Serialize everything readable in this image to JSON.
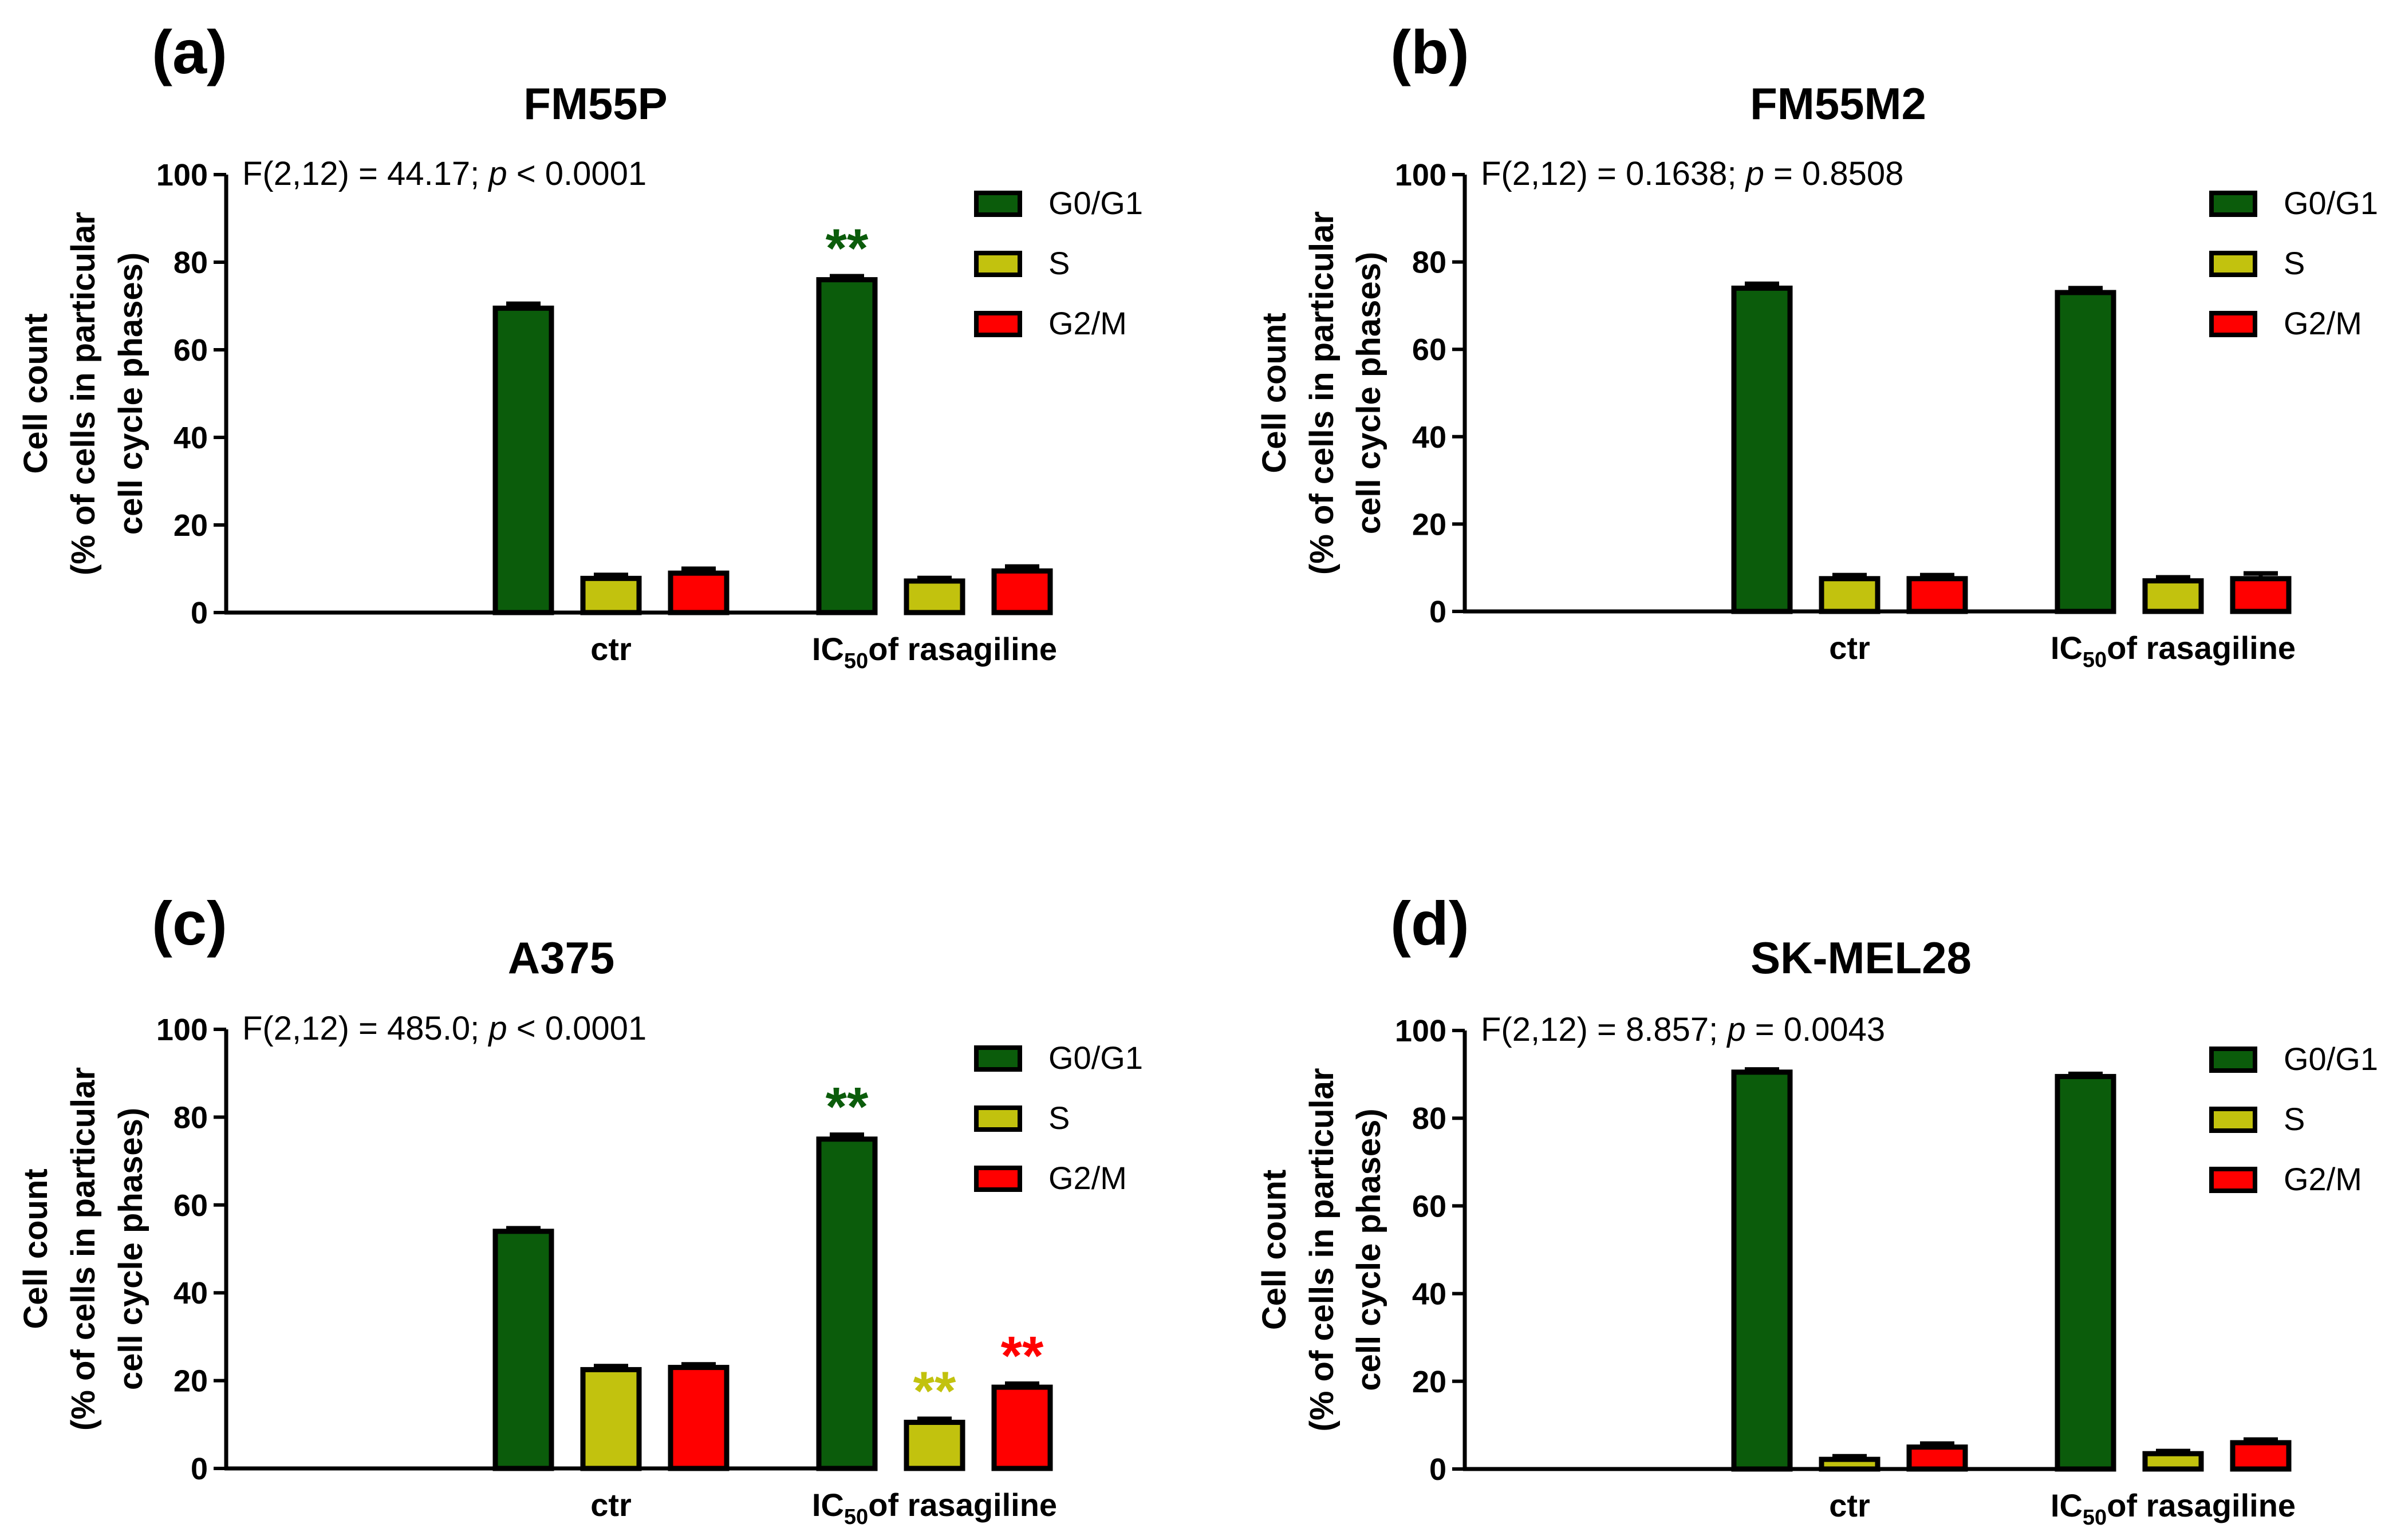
{
  "colors": {
    "G0/G1": "#0b5c0b",
    "S": "#c2c20e",
    "G2/M": "#ff0000",
    "stroke": "#000000"
  },
  "chart_data": [
    {
      "type": "bar",
      "panel_label": "(a)",
      "title": "FM55P",
      "annotation": {
        "prefix": "F(2,12) = 44.17; ",
        "p_symbol": "p",
        "suffix": " < 0.0001"
      },
      "ylabel_line1": "Cell count",
      "ylabel_line2": "(% of cells in particular",
      "ylabel_line3": "cell cycle phases)",
      "ylim": [
        0,
        100
      ],
      "yticks": [
        "0",
        "20",
        "40",
        "60",
        "80",
        "100"
      ],
      "categories": [
        {
          "main": "ctr",
          "sub": "",
          "rest": ""
        },
        {
          "main": "IC",
          "sub": "50",
          "rest": "of rasagiline"
        }
      ],
      "legend": [
        "G0/G1",
        "S",
        "G2/M"
      ],
      "legend_position": "right",
      "series": [
        {
          "name": "G0/G1",
          "values": [
            69.5,
            76.0
          ],
          "errors": [
            1.0,
            0.8
          ],
          "stars": [
            "",
            "**"
          ]
        },
        {
          "name": "S",
          "values": [
            7.8,
            7.2
          ],
          "errors": [
            0.8,
            0.7
          ],
          "stars": [
            "",
            ""
          ]
        },
        {
          "name": "G2/M",
          "values": [
            9.0,
            9.5
          ],
          "errors": [
            1.0,
            1.0
          ],
          "stars": [
            "",
            ""
          ]
        }
      ]
    },
    {
      "type": "bar",
      "panel_label": "(b)",
      "title": "FM55M2",
      "annotation": {
        "prefix": "F(2,12) = 0.1638; ",
        "p_symbol": "p",
        "suffix": " = 0.8508"
      },
      "ylabel_line1": "Cell count",
      "ylabel_line2": "(% of cells in particular",
      "ylabel_line3": "cell cycle phases)",
      "ylim": [
        0,
        100
      ],
      "yticks": [
        "0",
        "20",
        "40",
        "60",
        "80",
        "100"
      ],
      "categories": [
        {
          "main": "ctr",
          "sub": "",
          "rest": ""
        },
        {
          "main": "IC",
          "sub": "50",
          "rest": "of rasagiline"
        }
      ],
      "legend": [
        "G0/G1",
        "S",
        "G2/M"
      ],
      "legend_position": "right",
      "series": [
        {
          "name": "G0/G1",
          "values": [
            74.0,
            73.0
          ],
          "errors": [
            1.0,
            1.0
          ],
          "stars": [
            "",
            ""
          ]
        },
        {
          "name": "S",
          "values": [
            7.5,
            7.0
          ],
          "errors": [
            0.8,
            0.8
          ],
          "stars": [
            "",
            ""
          ]
        },
        {
          "name": "G2/M",
          "values": [
            7.5,
            7.5
          ],
          "errors": [
            0.8,
            1.2
          ],
          "stars": [
            "",
            ""
          ]
        }
      ]
    },
    {
      "type": "bar",
      "panel_label": "(c)",
      "title": "A375",
      "annotation": {
        "prefix": "F(2,12) = 485.0; ",
        "p_symbol": "p",
        "suffix": " < 0.0001"
      },
      "ylabel_line1": "Cell count",
      "ylabel_line2": "(% of cells in particular",
      "ylabel_line3": "cell cycle phases)",
      "ylim": [
        0,
        100
      ],
      "yticks": [
        "0",
        "20",
        "40",
        "60",
        "80",
        "100"
      ],
      "categories": [
        {
          "main": "ctr",
          "sub": "",
          "rest": ""
        },
        {
          "main": "IC",
          "sub": "50",
          "rest": "of rasagiline"
        }
      ],
      "legend": [
        "G0/G1",
        "S",
        "G2/M"
      ],
      "legend_position": "right",
      "series": [
        {
          "name": "G0/G1",
          "values": [
            54.0,
            75.0
          ],
          "errors": [
            0.7,
            1.0
          ],
          "stars": [
            "",
            "**"
          ]
        },
        {
          "name": "S",
          "values": [
            22.5,
            10.5
          ],
          "errors": [
            0.8,
            0.8
          ],
          "stars": [
            "",
            "**"
          ]
        },
        {
          "name": "G2/M",
          "values": [
            23.0,
            18.5
          ],
          "errors": [
            0.7,
            0.8
          ],
          "stars": [
            "",
            "**"
          ]
        }
      ]
    },
    {
      "type": "bar",
      "panel_label": "(d)",
      "title": "SK-MEL28",
      "annotation": {
        "prefix": "F(2,12) = 8.857; ",
        "p_symbol": "p",
        "suffix": " = 0.0043"
      },
      "ylabel_line1": "Cell count",
      "ylabel_line2": "(% of cells in particular",
      "ylabel_line3": "cell cycle phases)",
      "ylim": [
        0,
        100
      ],
      "yticks": [
        "0",
        "20",
        "40",
        "60",
        "80",
        "100"
      ],
      "categories": [
        {
          "main": "ctr",
          "sub": "",
          "rest": ""
        },
        {
          "main": "IC",
          "sub": "50",
          "rest": "of rasagiline"
        }
      ],
      "legend": [
        "G0/G1",
        "S",
        "G2/M"
      ],
      "legend_position": "right",
      "series": [
        {
          "name": "G0/G1",
          "values": [
            90.5,
            89.5
          ],
          "errors": [
            0.6,
            0.6
          ],
          "stars": [
            "",
            ""
          ]
        },
        {
          "name": "S",
          "values": [
            2.2,
            3.5
          ],
          "errors": [
            0.7,
            0.6
          ],
          "stars": [
            "",
            ""
          ]
        },
        {
          "name": "G2/M",
          "values": [
            5.0,
            6.0
          ],
          "errors": [
            0.8,
            0.7
          ],
          "stars": [
            "",
            ""
          ]
        }
      ]
    }
  ]
}
